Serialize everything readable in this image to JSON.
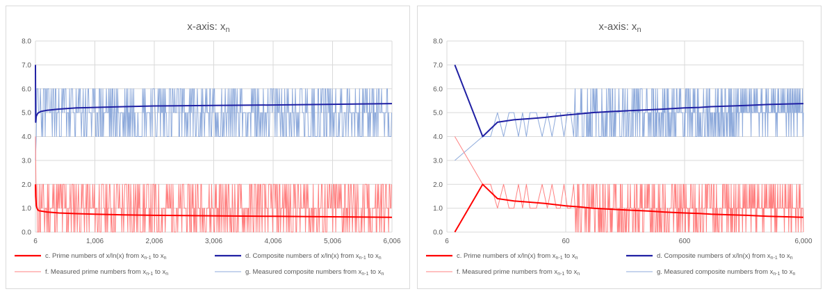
{
  "chart_data": [
    {
      "type": "line",
      "title": "x-axis: x_n",
      "title_main": "x-axis: x",
      "title_sub": "n",
      "x_scale": "linear",
      "xlim": [
        6,
        6006
      ],
      "ylim": [
        0,
        8
      ],
      "y_ticks": [
        "0.0",
        "1.0",
        "2.0",
        "3.0",
        "4.0",
        "5.0",
        "6.0",
        "7.0",
        "8.0"
      ],
      "x_ticks": [
        {
          "value": 6,
          "label": "6"
        },
        {
          "value": 1006,
          "label": "1,006"
        },
        {
          "value": 2006,
          "label": "2,006"
        },
        {
          "value": 3006,
          "label": "3,006"
        },
        {
          "value": 4006,
          "label": "4,006"
        },
        {
          "value": 5006,
          "label": "5,006"
        },
        {
          "value": 6006,
          "label": "6,006"
        }
      ],
      "series": [
        {
          "key": "c",
          "name": "c. Prime numbers of x/ln(x) from x_n-1 to x_n",
          "color": "#ff0000",
          "width": 2,
          "x": [
            6,
            10,
            20,
            40,
            60,
            100,
            200,
            400,
            700,
            1000,
            1500,
            2000,
            3000,
            4000,
            5000,
            6006
          ],
          "values": [
            2.0,
            1.5,
            1.1,
            0.95,
            0.9,
            0.88,
            0.84,
            0.8,
            0.77,
            0.75,
            0.72,
            0.7,
            0.68,
            0.66,
            0.64,
            0.62
          ]
        },
        {
          "key": "d",
          "name": "d. Composite numbers of x/ln(x) from x_n-1 to x_n",
          "color": "#1f1fa3",
          "width": 2,
          "x": [
            6,
            10,
            20,
            40,
            60,
            100,
            200,
            400,
            700,
            1000,
            1500,
            2000,
            3000,
            4000,
            5000,
            6006
          ],
          "values": [
            7.0,
            4.6,
            4.85,
            4.95,
            5.0,
            5.05,
            5.1,
            5.15,
            5.2,
            5.22,
            5.25,
            5.28,
            5.3,
            5.32,
            5.35,
            5.38
          ]
        },
        {
          "key": "f",
          "name": "f. Measured prime numbers from x_n-1 to x_n",
          "color": "#ff8080",
          "width": 1,
          "osc": {
            "from": 6,
            "to": 6006,
            "step": 10,
            "levels": [
              0,
              1,
              2
            ],
            "seed": 11
          }
        },
        {
          "key": "g",
          "name": "g. Measured composite numbers from x_n-1 to x_n",
          "color": "#8eaadb",
          "width": 1,
          "osc": {
            "from": 6,
            "to": 6006,
            "step": 10,
            "levels": [
              4,
              5,
              6
            ],
            "seed": 23
          }
        }
      ],
      "legend": [
        {
          "series": "c",
          "text": "c. Prime numbers of x/ln(x) from x",
          "sub1": "n-1",
          "mid": " to x",
          "sub2": "n"
        },
        {
          "series": "d",
          "text": "d. Composite numbers of x/ln(x) from x",
          "sub1": "n-1",
          "mid": " to x",
          "sub2": "n"
        },
        {
          "series": "f",
          "text": "f. Measured prime numbers from x",
          "sub1": "n-1",
          "mid": " to x",
          "sub2": "n"
        },
        {
          "series": "g",
          "text": "g. Measured composite numbers from x",
          "sub1": "n-1",
          "mid": " to x",
          "sub2": "n"
        }
      ],
      "legend_position": "bottom"
    },
    {
      "type": "line",
      "title": "x-axis: x_n",
      "title_main": "x-axis: x",
      "title_sub": "n",
      "x_scale": "log",
      "xlim": [
        6,
        6000
      ],
      "ylim": [
        0,
        8
      ],
      "y_ticks": [
        "0.0",
        "1.0",
        "2.0",
        "3.0",
        "4.0",
        "5.0",
        "6.0",
        "7.0",
        "8.0"
      ],
      "x_ticks": [
        {
          "value": 6,
          "label": "6"
        },
        {
          "value": 60,
          "label": "60"
        },
        {
          "value": 600,
          "label": "600"
        },
        {
          "value": 6000,
          "label": "6,000"
        }
      ],
      "series": [
        {
          "key": "c",
          "name": "c. Prime numbers of x/ln(x) from x_n-1 to x_n",
          "color": "#ff0000",
          "width": 2,
          "x": [
            7,
            12,
            16,
            22,
            30,
            40,
            60,
            80,
            100,
            150,
            200,
            300,
            400,
            600,
            800,
            1000,
            1500,
            2000,
            3000,
            6000
          ],
          "values": [
            0.0,
            2.0,
            1.4,
            1.3,
            1.25,
            1.2,
            1.1,
            1.05,
            1.0,
            0.95,
            0.92,
            0.88,
            0.84,
            0.8,
            0.78,
            0.75,
            0.72,
            0.7,
            0.66,
            0.62
          ]
        },
        {
          "key": "d",
          "name": "d. Composite numbers of x/ln(x) from x_n-1 to x_n",
          "color": "#1f1fa3",
          "width": 2,
          "x": [
            7,
            12,
            16,
            22,
            30,
            40,
            60,
            80,
            100,
            150,
            200,
            300,
            400,
            600,
            800,
            1000,
            1500,
            2000,
            3000,
            6000
          ],
          "values": [
            7.0,
            4.0,
            4.6,
            4.7,
            4.75,
            4.8,
            4.9,
            4.95,
            5.0,
            5.05,
            5.08,
            5.12,
            5.15,
            5.2,
            5.22,
            5.25,
            5.28,
            5.3,
            5.34,
            5.38
          ]
        },
        {
          "key": "f",
          "name": "f. Measured prime numbers from x_n-1 to x_n",
          "color": "#ff8080",
          "width": 1,
          "x": [
            7,
            12,
            14,
            16,
            18,
            20,
            22,
            24,
            26,
            28,
            30,
            34,
            38,
            42,
            46,
            50,
            54,
            58,
            62,
            66,
            70
          ],
          "values": [
            4,
            2,
            2,
            1,
            2,
            1,
            1,
            2,
            1,
            2,
            1,
            1,
            2,
            1,
            2,
            1,
            1,
            2,
            1,
            1,
            2
          ],
          "osc": {
            "from": 72,
            "to": 6000,
            "step": "log",
            "levels": [
              0,
              1,
              2
            ],
            "seed": 7
          }
        },
        {
          "key": "g",
          "name": "g. Measured composite numbers from x_n-1 to x_n",
          "color": "#8eaadb",
          "width": 1,
          "x": [
            7,
            12,
            14,
            16,
            18,
            20,
            22,
            24,
            26,
            28,
            30,
            34,
            38,
            42,
            46,
            50,
            54,
            58,
            62,
            66,
            70
          ],
          "values": [
            3,
            4,
            4,
            5,
            4,
            5,
            5,
            4,
            5,
            4,
            5,
            5,
            4,
            5,
            4,
            5,
            5,
            4,
            5,
            5,
            4
          ],
          "osc": {
            "from": 72,
            "to": 6000,
            "step": "log",
            "levels": [
              4,
              5,
              6
            ],
            "seed": 19
          }
        }
      ],
      "legend": [
        {
          "series": "c",
          "text": "c. Prime numbers of x/ln(x) from x",
          "sub1": "n-1",
          "mid": " to x",
          "sub2": "n"
        },
        {
          "series": "d",
          "text": "d. Composite numbers of x/ln(x) from x",
          "sub1": "n-1",
          "mid": " to x",
          "sub2": "n"
        },
        {
          "series": "f",
          "text": "f. Measured prime numbers from x",
          "sub1": "n-1",
          "mid": " to x",
          "sub2": "n"
        },
        {
          "series": "g",
          "text": "g. Measured composite numbers from x",
          "sub1": "n-1",
          "mid": " to x",
          "sub2": "n"
        }
      ],
      "legend_position": "bottom"
    }
  ]
}
